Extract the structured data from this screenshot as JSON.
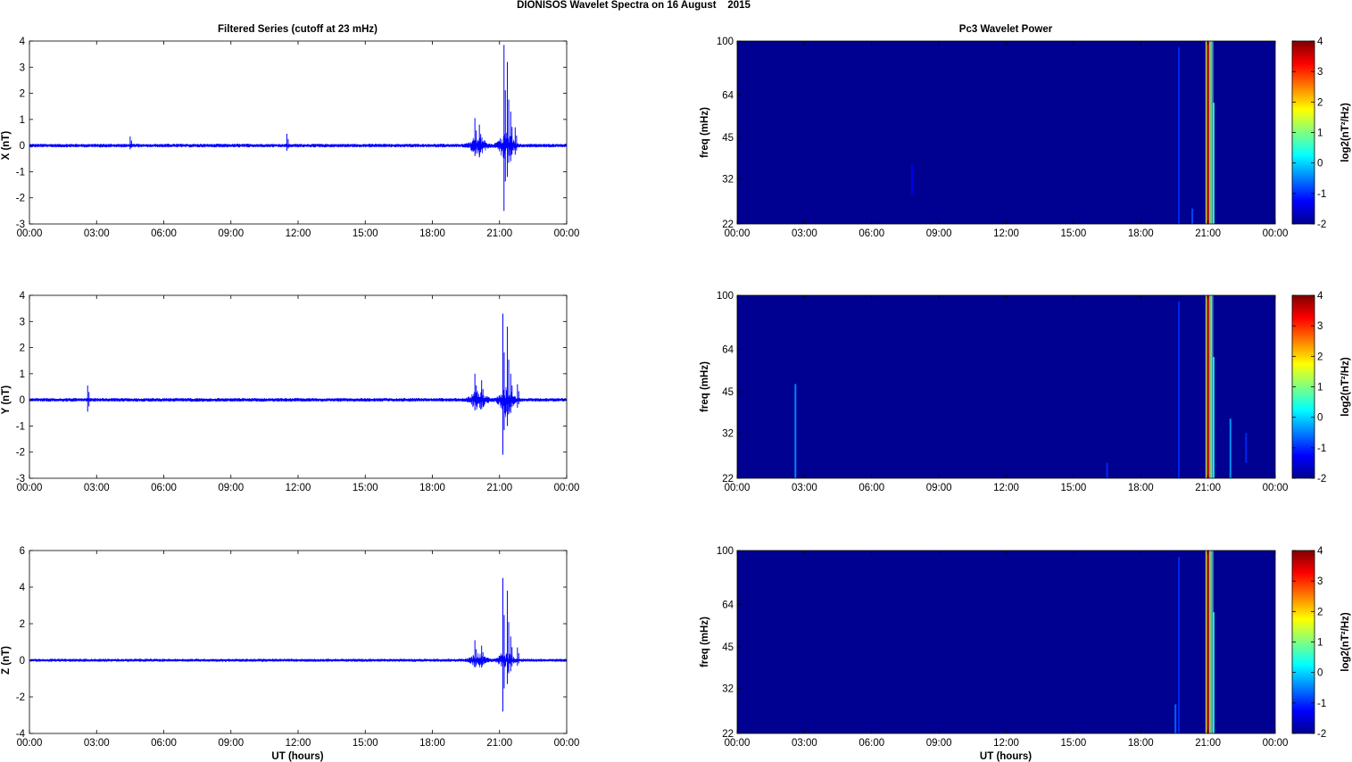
{
  "figure_title": "DIONISOS Wavelet Spectra on 16 August    2015",
  "left_title": "Filtered Series (cutoff at 23 mHz)",
  "right_title": "Pc3 Wavelet Power",
  "xlabel": "UT (hours)",
  "freq_label": "freq (mHz)",
  "colorbar_label": "log2(nT²/Hz)",
  "time_ticks": [
    "00:00",
    "03:00",
    "06:00",
    "09:00",
    "12:00",
    "15:00",
    "18:00",
    "21:00",
    "00:00"
  ],
  "colors": {
    "series_line": "#0000ff",
    "spectrum_background": "#00008f"
  },
  "chart_data": [
    {
      "type": "line",
      "component": "X",
      "ylabel": "X (nT)",
      "ylim": [
        -3,
        4
      ],
      "yticks": [
        -3,
        -2,
        -1,
        0,
        1,
        2,
        3,
        4
      ],
      "xlim_hours": [
        0,
        24
      ],
      "noise_amplitude_nT": 0.05,
      "spikes": [
        {
          "t": 4.5,
          "max": 0.35,
          "min": -0.15
        },
        {
          "t": 11.5,
          "max": 0.45,
          "min": -0.2
        },
        {
          "t": 19.9,
          "max": 1.05,
          "min": -0.4
        },
        {
          "t": 20.1,
          "max": 0.8,
          "min": -0.45
        },
        {
          "t": 21.2,
          "max": 3.85,
          "min": -2.5
        },
        {
          "t": 21.35,
          "max": 3.2,
          "min": -1.2
        },
        {
          "t": 21.5,
          "max": 1.3,
          "min": -0.6
        },
        {
          "t": 21.7,
          "max": 0.7,
          "min": -0.35
        }
      ]
    },
    {
      "type": "line",
      "component": "Y",
      "ylabel": "Y (nT)",
      "ylim": [
        -3,
        4
      ],
      "yticks": [
        -3,
        -2,
        -1,
        0,
        1,
        2,
        3,
        4
      ],
      "xlim_hours": [
        0,
        24
      ],
      "noise_amplitude_nT": 0.05,
      "spikes": [
        {
          "t": 2.6,
          "max": 0.55,
          "min": -0.45
        },
        {
          "t": 19.9,
          "max": 1.0,
          "min": -0.4
        },
        {
          "t": 20.2,
          "max": 0.75,
          "min": -0.35
        },
        {
          "t": 21.15,
          "max": 3.3,
          "min": -2.1
        },
        {
          "t": 21.35,
          "max": 2.8,
          "min": -1.0
        },
        {
          "t": 21.5,
          "max": 1.0,
          "min": -0.5
        },
        {
          "t": 21.8,
          "max": 0.6,
          "min": -0.3
        }
      ]
    },
    {
      "type": "line",
      "component": "Z",
      "ylabel": "Z (nT)",
      "ylim": [
        -4,
        6
      ],
      "yticks": [
        -4,
        -2,
        0,
        2,
        4,
        6
      ],
      "xlim_hours": [
        0,
        24
      ],
      "noise_amplitude_nT": 0.06,
      "spikes": [
        {
          "t": 19.9,
          "max": 1.1,
          "min": -0.4
        },
        {
          "t": 20.2,
          "max": 0.8,
          "min": -0.4
        },
        {
          "t": 21.15,
          "max": 4.5,
          "min": -2.8
        },
        {
          "t": 21.35,
          "max": 3.8,
          "min": -1.3
        },
        {
          "t": 21.5,
          "max": 1.3,
          "min": -0.6
        },
        {
          "t": 21.8,
          "max": 0.7,
          "min": -0.3
        }
      ]
    },
    {
      "type": "heatmap",
      "component": "X",
      "ylabel": "freq (mHz)",
      "yticks_mHz": [
        22,
        32,
        45,
        64,
        100
      ],
      "ylim_mHz": [
        22,
        100
      ],
      "clim": [
        -2,
        4
      ],
      "cbar_ticks": [
        -2,
        -1,
        0,
        1,
        2,
        3,
        4
      ],
      "background_level": -1.9,
      "features": [
        {
          "t": 7.8,
          "fmin": 28,
          "fmax": 36,
          "level": -1.3,
          "width_h": 0.08
        },
        {
          "t": 19.7,
          "fmin": 22,
          "fmax": 95,
          "level": -1.0,
          "width_h": 0.08
        },
        {
          "t": 20.3,
          "fmin": 22,
          "fmax": 25,
          "level": -0.8,
          "width_h": 0.08
        },
        {
          "t": 21.0,
          "fmin": 22,
          "fmax": 100,
          "level": 3.5,
          "width_h": 0.1
        },
        {
          "t": 21.15,
          "fmin": 22,
          "fmax": 100,
          "level": 2.2,
          "width_h": 0.08
        },
        {
          "t": 21.25,
          "fmin": 22,
          "fmax": 60,
          "level": 0.5,
          "width_h": 0.08
        }
      ]
    },
    {
      "type": "heatmap",
      "component": "Y",
      "ylabel": "freq (mHz)",
      "yticks_mHz": [
        22,
        32,
        45,
        64,
        100
      ],
      "ylim_mHz": [
        22,
        100
      ],
      "clim": [
        -2,
        4
      ],
      "cbar_ticks": [
        -2,
        -1,
        0,
        1,
        2,
        3,
        4
      ],
      "background_level": -1.9,
      "features": [
        {
          "t": 2.6,
          "fmin": 22,
          "fmax": 48,
          "level": -0.4,
          "width_h": 0.08
        },
        {
          "t": 16.5,
          "fmin": 22,
          "fmax": 25,
          "level": -1.0,
          "width_h": 0.08
        },
        {
          "t": 19.7,
          "fmin": 22,
          "fmax": 95,
          "level": -1.0,
          "width_h": 0.08
        },
        {
          "t": 21.0,
          "fmin": 22,
          "fmax": 100,
          "level": 3.4,
          "width_h": 0.1
        },
        {
          "t": 21.15,
          "fmin": 22,
          "fmax": 100,
          "level": 2.0,
          "width_h": 0.08
        },
        {
          "t": 21.25,
          "fmin": 22,
          "fmax": 60,
          "level": 0.3,
          "width_h": 0.08
        },
        {
          "t": 22.0,
          "fmin": 22,
          "fmax": 36,
          "level": -0.3,
          "width_h": 0.08
        },
        {
          "t": 22.7,
          "fmin": 25,
          "fmax": 32,
          "level": -1.0,
          "width_h": 0.08
        }
      ]
    },
    {
      "type": "heatmap",
      "component": "Z",
      "ylabel": "freq (mHz)",
      "yticks_mHz": [
        22,
        32,
        45,
        64,
        100
      ],
      "ylim_mHz": [
        22,
        100
      ],
      "clim": [
        -2,
        4
      ],
      "cbar_ticks": [
        -2,
        -1,
        0,
        1,
        2,
        3,
        4
      ],
      "background_level": -1.9,
      "features": [
        {
          "t": 19.7,
          "fmin": 22,
          "fmax": 95,
          "level": -1.0,
          "width_h": 0.08
        },
        {
          "t": 19.55,
          "fmin": 22,
          "fmax": 28,
          "level": -0.6,
          "width_h": 0.08
        },
        {
          "t": 21.0,
          "fmin": 22,
          "fmax": 100,
          "level": 3.6,
          "width_h": 0.1
        },
        {
          "t": 21.15,
          "fmin": 22,
          "fmax": 100,
          "level": 2.3,
          "width_h": 0.08
        },
        {
          "t": 21.25,
          "fmin": 22,
          "fmax": 60,
          "level": 0.4,
          "width_h": 0.08
        }
      ]
    }
  ]
}
